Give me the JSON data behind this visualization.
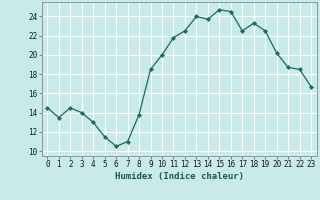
{
  "x": [
    0,
    1,
    2,
    3,
    4,
    5,
    6,
    7,
    8,
    9,
    10,
    11,
    12,
    13,
    14,
    15,
    16,
    17,
    18,
    19,
    20,
    21,
    22,
    23
  ],
  "y": [
    14.5,
    13.5,
    14.5,
    14.0,
    13.0,
    11.5,
    10.5,
    11.0,
    13.8,
    18.5,
    20.0,
    21.8,
    22.5,
    24.0,
    23.7,
    24.7,
    24.5,
    22.5,
    23.3,
    22.5,
    20.2,
    18.7,
    18.5,
    16.7
  ],
  "line_color": "#1a6b5a",
  "marker": "D",
  "marker_size": 2.2,
  "bg_color": "#c8eaea",
  "grid_color": "#ffffff",
  "xlabel": "Humidex (Indice chaleur)",
  "xlim": [
    -0.5,
    23.5
  ],
  "ylim": [
    9.5,
    25.5
  ],
  "yticks": [
    10,
    12,
    14,
    16,
    18,
    20,
    22,
    24
  ],
  "xticks": [
    0,
    1,
    2,
    3,
    4,
    5,
    6,
    7,
    8,
    9,
    10,
    11,
    12,
    13,
    14,
    15,
    16,
    17,
    18,
    19,
    20,
    21,
    22,
    23
  ],
  "tick_label_fontsize": 5.5,
  "xlabel_fontsize": 6.5
}
